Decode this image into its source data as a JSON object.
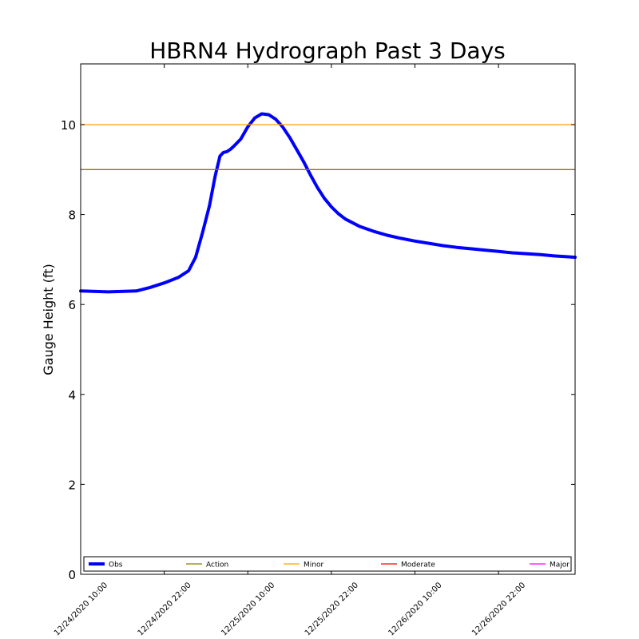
{
  "chart_data": {
    "type": "line",
    "title": "HBRN4 Hydrograph Past 3 Days",
    "xlabel": "",
    "ylabel": "Gauge Height (ft)",
    "ylim": [
      0,
      11.35
    ],
    "xlim_hours": [
      0,
      71
    ],
    "x_ticks": [
      {
        "label": "12/24/2020 10:00",
        "hour": 0
      },
      {
        "label": "12/24/2020 22:00",
        "hour": 12
      },
      {
        "label": "12/25/2020 10:00",
        "hour": 24
      },
      {
        "label": "12/25/2020 22:00",
        "hour": 36
      },
      {
        "label": "12/26/2020 10:00",
        "hour": 48
      },
      {
        "label": "12/26/2020 22:00",
        "hour": 60
      }
    ],
    "y_ticks": [
      0,
      2,
      4,
      6,
      8,
      10
    ],
    "series": [
      {
        "name": "Obs",
        "color": "#0000ff",
        "x_hours": [
          0,
          4,
          8,
          10,
          12,
          14,
          15.5,
          16.5,
          17.5,
          18.5,
          19.3,
          20,
          20.5,
          21,
          21.5,
          22,
          23,
          24,
          25,
          26,
          27,
          28,
          29,
          30,
          31,
          32,
          33,
          34,
          35,
          36,
          37,
          38,
          39,
          40,
          42,
          44,
          46,
          48,
          50,
          52,
          54,
          56,
          58,
          60,
          62,
          64,
          66,
          68,
          70,
          71
        ],
        "values": [
          6.3,
          6.28,
          6.3,
          6.38,
          6.48,
          6.6,
          6.75,
          7.05,
          7.6,
          8.2,
          8.85,
          9.3,
          9.38,
          9.4,
          9.45,
          9.52,
          9.68,
          9.95,
          10.15,
          10.24,
          10.22,
          10.12,
          9.95,
          9.72,
          9.45,
          9.18,
          8.88,
          8.6,
          8.36,
          8.17,
          8.02,
          7.9,
          7.82,
          7.74,
          7.63,
          7.54,
          7.47,
          7.41,
          7.36,
          7.31,
          7.27,
          7.24,
          7.21,
          7.18,
          7.15,
          7.13,
          7.11,
          7.08,
          7.06,
          7.05
        ]
      },
      {
        "name": "Action",
        "color": "#808000",
        "level": 9.0
      },
      {
        "name": "Minor",
        "color": "#ffa500",
        "level": 10.0
      },
      {
        "name": "Moderate",
        "color": "#ff0000",
        "level": null
      },
      {
        "name": "Major",
        "color": "#ff00ff",
        "level": null
      }
    ],
    "legend_position": "bottom",
    "grid": false
  }
}
